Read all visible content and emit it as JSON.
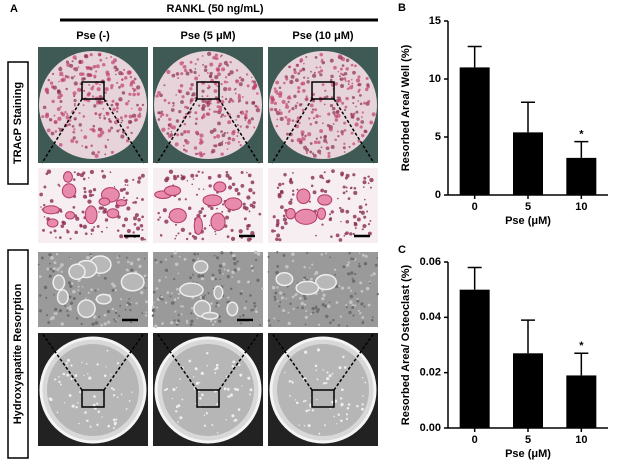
{
  "panel_a": {
    "label": "A",
    "treatment": "RANKL (50 ng/mL)",
    "columns": [
      "Pse (-)",
      "Pse (5 μM)",
      "Pse (10 μM)"
    ],
    "rows": [
      "TRAcP Staining",
      "Hydroxyapatite Resorption"
    ]
  },
  "chart_data": [
    {
      "type": "bar",
      "panel_label": "B",
      "ylabel": "Resorbed Area/ Well (%)",
      "xlabel": "Pse (μM)",
      "categories": [
        "0",
        "5",
        "10"
      ],
      "values": [
        11,
        5.4,
        3.2
      ],
      "errors": [
        1.8,
        2.6,
        1.4
      ],
      "color": "#000000",
      "ylim": [
        0,
        15
      ],
      "yticks": [
        0,
        5,
        10,
        15
      ],
      "annotation": "*"
    },
    {
      "type": "bar",
      "panel_label": "C",
      "ylabel": "Resorbed Area/ Osteoclast (%)",
      "xlabel": "Pse (μM)",
      "categories": [
        "0",
        "5",
        "10"
      ],
      "values": [
        0.05,
        0.027,
        0.019
      ],
      "errors": [
        0.008,
        0.012,
        0.008
      ],
      "color": "#000000",
      "ylim": [
        0,
        0.06
      ],
      "yticks": [
        {
          "value": 0,
          "label": "0.00"
        },
        {
          "value": 0.02,
          "label": "0.02"
        },
        {
          "value": 0.04,
          "label": "0.04"
        },
        {
          "value": 0.06,
          "label": "0.06"
        }
      ],
      "annotation": "*"
    }
  ]
}
